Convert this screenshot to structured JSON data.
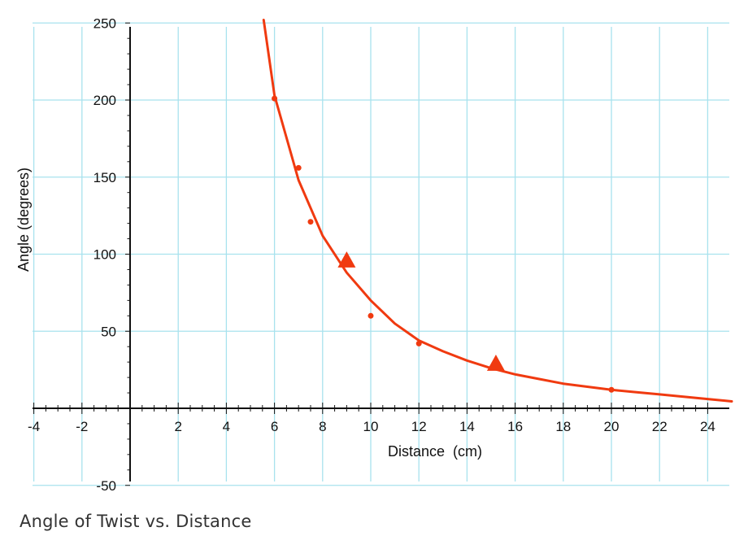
{
  "caption": "Angle of Twist vs. Distance",
  "colors": {
    "grid": "#a8e2ee",
    "axis": "#111111",
    "series": "#f03a10"
  },
  "chart_data": {
    "type": "scatter",
    "xlabel": "Distance  (cm)",
    "ylabel": "Angle (degrees)",
    "xlim": [
      -4,
      25
    ],
    "ylim": [
      -55,
      255
    ],
    "grid": true,
    "x_ticks": [
      -4,
      -2,
      2,
      4,
      6,
      8,
      10,
      12,
      14,
      16,
      18,
      20,
      22,
      24
    ],
    "x_tick_labels": [
      "-4",
      "-2",
      "2",
      "4",
      "6",
      "8",
      "10",
      "12",
      "14",
      "16",
      "18",
      "20",
      "22",
      "24"
    ],
    "y_ticks": [
      -50,
      50,
      100,
      150,
      200,
      250
    ],
    "y_tick_labels": [
      "-50",
      "50",
      "100",
      "150",
      "200",
      "250"
    ],
    "series": [
      {
        "marker": "dot",
        "points": [
          {
            "x": 6.0,
            "y": 201
          },
          {
            "x": 7.0,
            "y": 156
          },
          {
            "x": 7.5,
            "y": 121
          },
          {
            "x": 10.0,
            "y": 60
          },
          {
            "x": 12.0,
            "y": 42
          },
          {
            "x": 20.0,
            "y": 12
          }
        ]
      },
      {
        "marker": "triangle",
        "points": [
          {
            "x": 9.0,
            "y": 96
          },
          {
            "x": 15.2,
            "y": 29
          }
        ]
      }
    ],
    "fit_curve": {
      "x_start": 5.55,
      "x_end": 25,
      "points": [
        {
          "x": 5.55,
          "y": 252
        },
        {
          "x": 6,
          "y": 203
        },
        {
          "x": 7,
          "y": 148
        },
        {
          "x": 8,
          "y": 112
        },
        {
          "x": 9,
          "y": 88
        },
        {
          "x": 10,
          "y": 70
        },
        {
          "x": 11,
          "y": 55
        },
        {
          "x": 12,
          "y": 44
        },
        {
          "x": 13,
          "y": 37
        },
        {
          "x": 14,
          "y": 31
        },
        {
          "x": 15,
          "y": 26
        },
        {
          "x": 16,
          "y": 22
        },
        {
          "x": 17,
          "y": 19
        },
        {
          "x": 18,
          "y": 16
        },
        {
          "x": 19,
          "y": 14
        },
        {
          "x": 20,
          "y": 12
        },
        {
          "x": 21,
          "y": 10.5
        },
        {
          "x": 22,
          "y": 9
        },
        {
          "x": 23,
          "y": 7.5
        },
        {
          "x": 24,
          "y": 6
        },
        {
          "x": 25,
          "y": 4.5
        }
      ]
    }
  }
}
